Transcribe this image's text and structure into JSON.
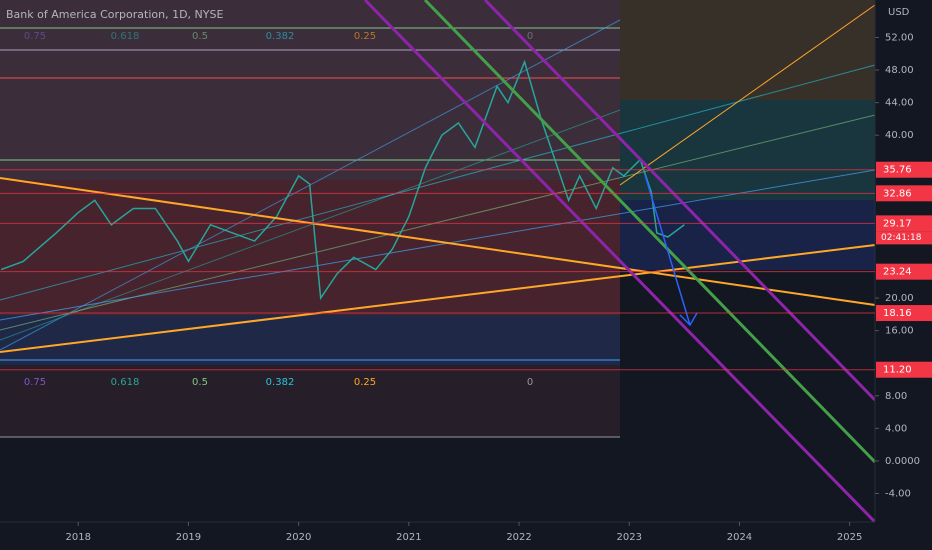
{
  "header": {
    "title": "Bank of America Corporation, 1D, NYSE",
    "currency": "USD"
  },
  "chart_data": {
    "type": "line",
    "x": [
      2017.3,
      2017.5,
      2017.8,
      2018.0,
      2018.15,
      2018.3,
      2018.5,
      2018.7,
      2018.9,
      2019.0,
      2019.2,
      2019.4,
      2019.6,
      2019.8,
      2020.0,
      2020.1,
      2020.2,
      2020.35,
      2020.5,
      2020.7,
      2020.85,
      2021.0,
      2021.15,
      2021.3,
      2021.45,
      2021.6,
      2021.8,
      2021.9,
      2022.05,
      2022.2,
      2022.35,
      2022.45,
      2022.55,
      2022.7,
      2022.85,
      2022.95,
      2023.1,
      2023.2,
      2023.25,
      2023.35,
      2023.5
    ],
    "values": [
      23.5,
      24.5,
      28,
      30.5,
      32,
      29,
      31,
      31,
      27,
      24.5,
      29,
      28,
      27,
      30,
      35,
      34,
      20,
      23,
      25,
      23.5,
      26,
      30,
      36,
      40,
      41.5,
      38.5,
      46,
      44,
      49,
      42,
      36,
      32,
      35,
      31,
      36,
      35,
      37,
      33,
      28,
      27.5,
      29
    ],
    "color": "#26a69a",
    "xlim": [
      2017.29,
      2025.23
    ],
    "ylim": [
      -7.5,
      56.6
    ],
    "xticks": [
      2018,
      2019,
      2020,
      2021,
      2022,
      2023,
      2024,
      2025
    ],
    "yticks": [
      {
        "value": 52,
        "label": "52.00"
      },
      {
        "value": 48,
        "label": "48.00"
      },
      {
        "value": 44,
        "label": "44.00"
      },
      {
        "value": 40,
        "label": "40.00"
      },
      {
        "value": 20,
        "label": "20.00"
      },
      {
        "value": 16,
        "label": "16.00"
      },
      {
        "value": 8,
        "label": "8.00"
      },
      {
        "value": 4,
        "label": "4.00"
      },
      {
        "value": 0,
        "label": "0.0000"
      },
      {
        "value": -4,
        "label": "-4.00"
      }
    ],
    "levels": [
      {
        "value": 35.76,
        "label": "35.76",
        "color": "#f23645"
      },
      {
        "value": 32.86,
        "label": "32.86",
        "color": "#f23645"
      },
      {
        "value": 29.17,
        "label": "29.17",
        "color": "#f23645"
      },
      {
        "value": 23.24,
        "label": "23.24",
        "color": "#f23645"
      },
      {
        "value": 18.16,
        "label": "18.16",
        "color": "#f23645"
      },
      {
        "value": 11.2,
        "label": "11.20",
        "color": "#f23645"
      }
    ],
    "countdown": "02:41:18",
    "fib_labels_top": [
      "0.75",
      "0.618",
      "0.5",
      "0.382",
      "0.25",
      "0"
    ],
    "fib_labels_bottom": [
      "0.75",
      "0.618",
      "0.5",
      "0.382",
      "0.25",
      "0"
    ]
  }
}
